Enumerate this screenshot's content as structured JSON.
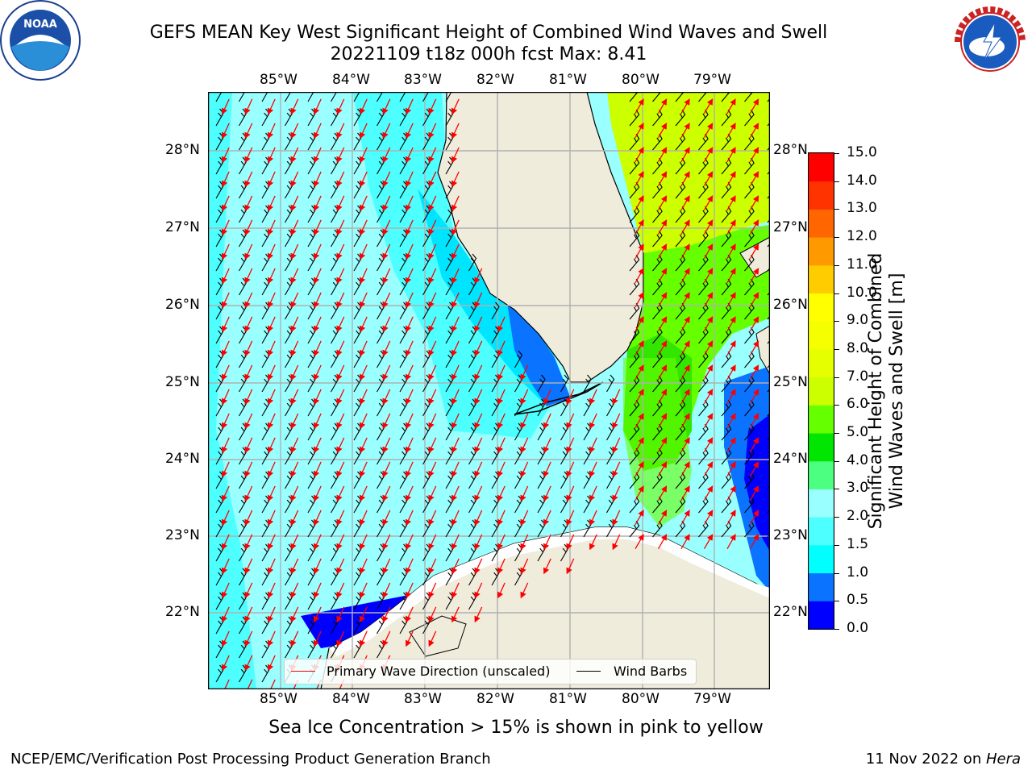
{
  "title": {
    "line1": "GEFS MEAN Key West Significant Height of Combined Wind Waves and Swell",
    "line2": "20221109 t18z 000h fcst    Max: 8.41"
  },
  "map": {
    "lon_ticks": [
      "85°W",
      "84°W",
      "83°W",
      "82°W",
      "81°W",
      "80°W",
      "79°W"
    ],
    "lat_ticks": [
      "28°N",
      "27°N",
      "26°N",
      "25°N",
      "24°N",
      "23°N",
      "22°N"
    ],
    "colors": {
      "land": "#efecdc",
      "ocean_cyan": "#99ffff",
      "ocean_aqua": "#4dffff",
      "ocean_dark": "#00e5ff",
      "deep_blue": "#0000ff",
      "mid_blue": "#0a73ff",
      "green": "#33e600",
      "lime": "#66ff00",
      "yellow": "#ccff00",
      "grid": "#b0b0b0",
      "wave_arrow": "#ff0000",
      "barb": "#000000"
    }
  },
  "legend": {
    "wave_label": "Primary Wave Direction (unscaled)",
    "barb_label": "Wind Barbs"
  },
  "colorbar": {
    "title_line1": "Significant Height of Combined",
    "title_line2": "Wind Waves and Swell [m]",
    "ticks": [
      "0.0",
      "0.5",
      "1.0",
      "1.5",
      "2.0",
      "3.0",
      "4.0",
      "5.0",
      "6.0",
      "7.0",
      "8.0",
      "9.0",
      "10.0",
      "11.0",
      "12.0",
      "13.0",
      "14.0",
      "15.0"
    ],
    "colors": [
      "#0000ff",
      "#0a73ff",
      "#00ffff",
      "#4dffff",
      "#99ffff",
      "#4dff80",
      "#00e600",
      "#66ff00",
      "#ccff00",
      "#e6ff00",
      "#f5ff00",
      "#ffff00",
      "#ffcc00",
      "#ff9900",
      "#ff6600",
      "#ff3300",
      "#ff0000"
    ]
  },
  "caption": "Sea Ice Concentration > 15% is shown in pink to yellow",
  "footer": {
    "left": "NCEP/EMC/Verification Post Processing Product Generation Branch",
    "right_prefix": "11 Nov 2022 on ",
    "right_host": "Hera"
  },
  "logos": {
    "noaa_text": "NOAA",
    "nws_text": "NATIONAL WEATHER SERVICE"
  }
}
